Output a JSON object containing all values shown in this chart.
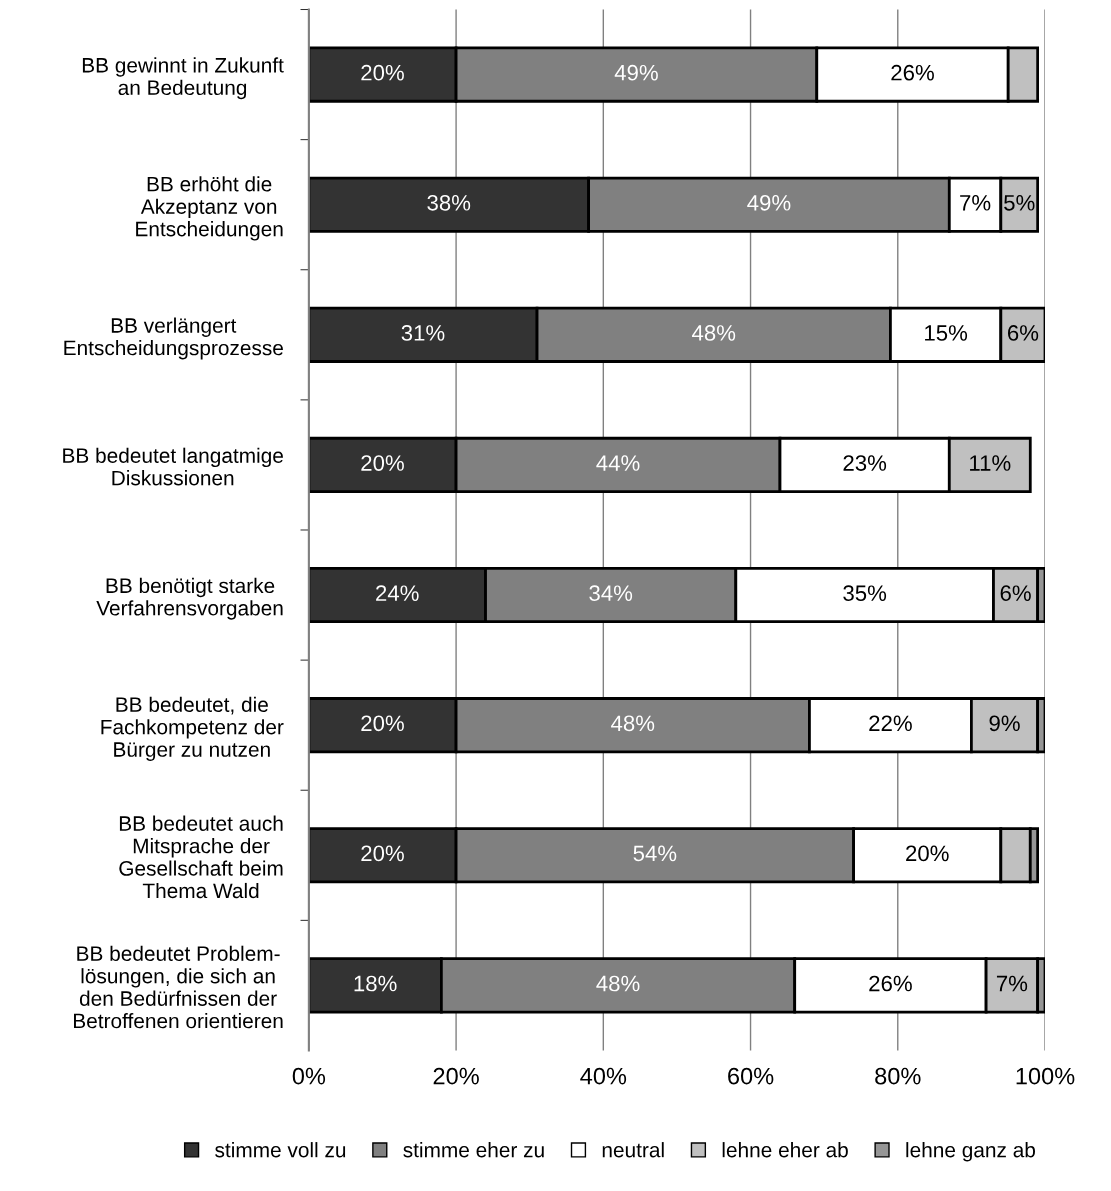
{
  "chart_data": {
    "type": "bar",
    "orientation": "horizontal",
    "stacked": true,
    "categories": [
      "BB gewinnt in Zukunft\nan Bedeutung",
      "BB erhöht die\nAkzeptanz von\nEntscheidungen",
      "BB verlängert\nEntscheidungsprozesse",
      "BB bedeutet langatmige\nDiskussionen",
      "BB benötigt starke\nVerfahrensvorgaben",
      "BB bedeutet, die\nFachkompetenz der\nBürger zu nutzen",
      "BB bedeutet auch\nMitsprache der\nGesellschaft beim\nThema Wald",
      "BB bedeutet Problem-\nlösungen, die sich an\nden Bedürfnissen der\nBetroffenen orientieren"
    ],
    "series": [
      {
        "name": "stimme voll zu",
        "color": "#333333",
        "values": [
          20,
          38,
          31,
          20,
          24,
          20,
          20,
          18
        ],
        "value_labels": [
          "20%",
          "38%",
          "31%",
          "20%",
          "24%",
          "20%",
          "20%",
          "18%"
        ]
      },
      {
        "name": "stimme eher zu",
        "color": "#808080",
        "values": [
          49,
          49,
          48,
          44,
          34,
          48,
          54,
          48
        ],
        "value_labels": [
          "49%",
          "49%",
          "48%",
          "44%",
          "34%",
          "48%",
          "54%",
          "48%"
        ]
      },
      {
        "name": "neutral",
        "color": "#ffffff",
        "values": [
          26,
          7,
          15,
          23,
          35,
          22,
          20,
          26
        ],
        "value_labels": [
          "26%",
          "7%",
          "15%",
          "23%",
          "35%",
          "22%",
          "20%",
          "26%"
        ]
      },
      {
        "name": "lehne eher ab",
        "color": "#c0c0c0",
        "values": [
          4,
          5,
          6,
          11,
          6,
          9,
          4,
          7
        ],
        "value_labels": [
          null,
          "5%",
          "6%",
          "11%",
          "6%",
          "9%",
          null,
          "7%"
        ]
      },
      {
        "name": "lehne ganz ab",
        "color": "#969696",
        "values": [
          null,
          null,
          null,
          null,
          1,
          1,
          1,
          1
        ],
        "value_labels": [
          null,
          null,
          null,
          null,
          null,
          null,
          null,
          null
        ]
      }
    ],
    "xlim": [
      0,
      100
    ],
    "xticks": [
      {
        "value": 0,
        "label": "0%"
      },
      {
        "value": 20,
        "label": "20%"
      },
      {
        "value": 40,
        "label": "40%"
      },
      {
        "value": 60,
        "label": "60%"
      },
      {
        "value": 80,
        "label": "80%"
      },
      {
        "value": 100,
        "label": "100%"
      }
    ],
    "grid": "x",
    "legend": "bottom"
  }
}
